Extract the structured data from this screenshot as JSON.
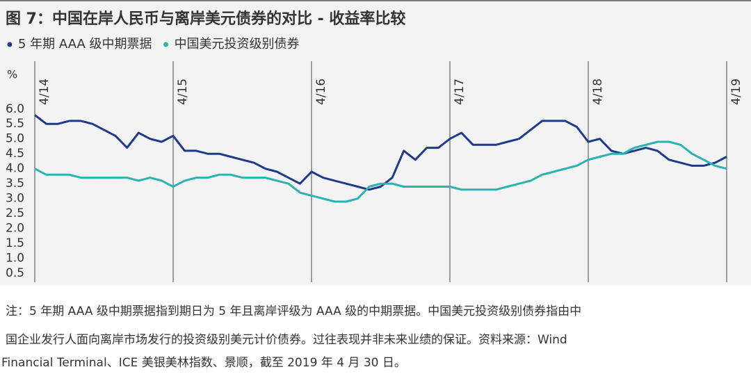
{
  "chart_data": {
    "type": "line",
    "title": "图 7：中国在岸人民币与离岸美元债券的对比 - 收益率比较",
    "y_label": "%",
    "categories": [
      "4/14",
      null,
      null,
      null,
      null,
      null,
      null,
      null,
      null,
      null,
      null,
      null,
      "4/15",
      null,
      null,
      null,
      null,
      null,
      null,
      null,
      null,
      null,
      null,
      null,
      "4/16",
      null,
      null,
      null,
      null,
      null,
      null,
      null,
      null,
      null,
      null,
      null,
      "4/17",
      null,
      null,
      null,
      null,
      null,
      null,
      null,
      null,
      null,
      null,
      null,
      "4/18",
      null,
      null,
      null,
      null,
      null,
      null,
      null,
      null,
      null,
      null,
      null,
      "4/19"
    ],
    "series": [
      {
        "name": "5 年期 AAA 级中期票据",
        "color": "#1f3a8a",
        "values": [
          5.8,
          5.5,
          5.5,
          5.6,
          5.6,
          5.5,
          5.3,
          5.1,
          4.7,
          5.2,
          5.0,
          4.9,
          5.1,
          4.6,
          4.6,
          4.5,
          4.5,
          4.4,
          4.3,
          4.2,
          4.0,
          3.9,
          3.7,
          3.5,
          3.9,
          3.7,
          3.6,
          3.5,
          3.4,
          3.3,
          3.4,
          3.7,
          4.6,
          4.3,
          4.7,
          4.7,
          5.0,
          5.2,
          4.8,
          4.8,
          4.8,
          4.9,
          5.0,
          5.3,
          5.6,
          5.6,
          5.6,
          5.4,
          4.9,
          5.0,
          4.6,
          4.5,
          4.6,
          4.7,
          4.6,
          4.3,
          4.2,
          4.1,
          4.1,
          4.2,
          4.4
        ]
      },
      {
        "name": "中国美元投资级别债券",
        "color": "#2ab3b1",
        "values": [
          4.0,
          3.8,
          3.8,
          3.8,
          3.7,
          3.7,
          3.7,
          3.7,
          3.7,
          3.6,
          3.7,
          3.6,
          3.4,
          3.6,
          3.7,
          3.7,
          3.8,
          3.8,
          3.7,
          3.7,
          3.7,
          3.6,
          3.5,
          3.2,
          3.1,
          3.0,
          2.9,
          2.9,
          3.0,
          3.4,
          3.5,
          3.5,
          3.4,
          3.4,
          3.4,
          3.4,
          3.4,
          3.3,
          3.3,
          3.3,
          3.3,
          3.4,
          3.5,
          3.6,
          3.8,
          3.9,
          4.0,
          4.1,
          4.3,
          4.4,
          4.5,
          4.5,
          4.7,
          4.8,
          4.9,
          4.9,
          4.8,
          4.5,
          4.3,
          4.1,
          4.0
        ]
      }
    ],
    "ylim": [
      0.2,
      7.6
    ],
    "yticks": [
      0.5,
      {
        "value": 1,
        "label": "1.0"
      },
      1.5,
      {
        "value": 2,
        "label": "2.0"
      },
      2.5,
      {
        "value": 3,
        "label": "3.0"
      },
      3.5,
      {
        "value": 4,
        "label": "4.0"
      },
      4.5,
      {
        "value": 5,
        "label": "5.0"
      },
      5.5,
      {
        "value": 6,
        "label": "6.0"
      }
    ],
    "note_lines": [
      "注：5 年期 AAA 级中期票据指到期日为 5 年且离岸评级为 AAA 级的中期票据。中国美元投资级别债券指由中",
      "国企业发行人面向离岸市场发行的投资级别美元计价债券。过往表现并非未来业绩的保证。资料来源：Wind",
      "Financial Terminal、ICE 美银美林指数、景顺，截至 2019 年 4 月 30 日。"
    ]
  }
}
